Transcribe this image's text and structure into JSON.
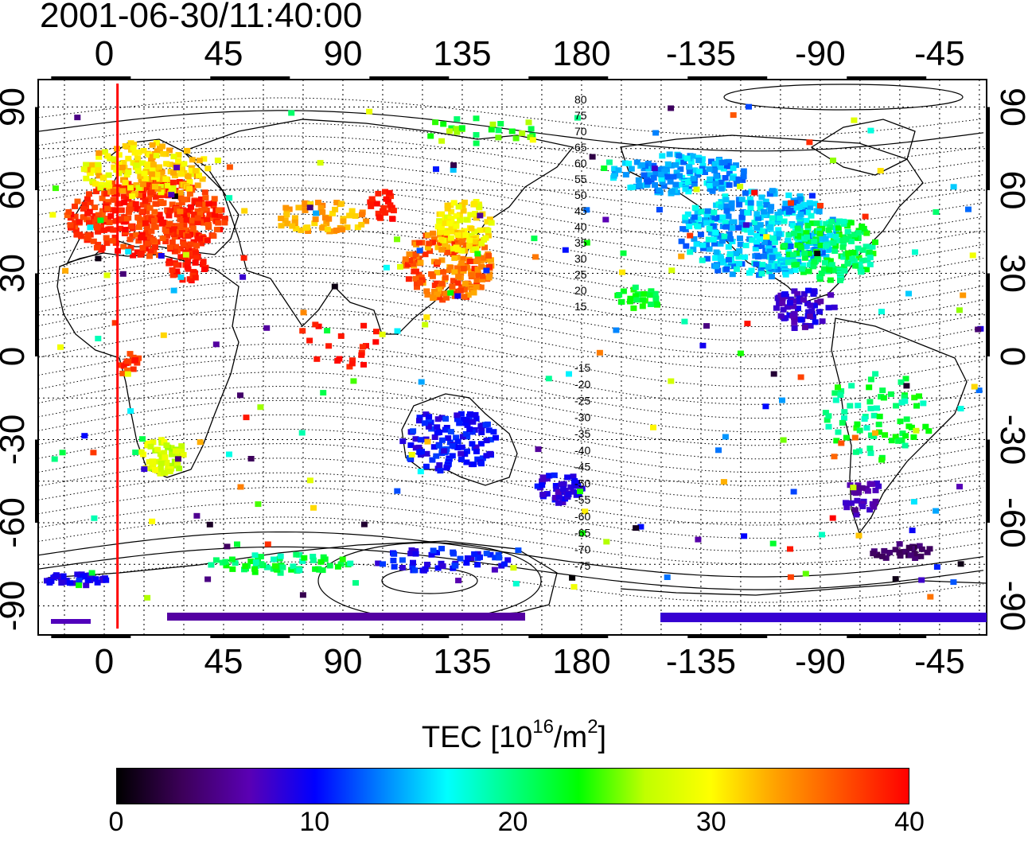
{
  "title": "2001-06-30/11:40:00",
  "map": {
    "top_lon_labels": [
      "0",
      "45",
      "90",
      "135",
      "180",
      "-135",
      "-90",
      "-45"
    ],
    "bottom_lon_labels": [
      "0",
      "45",
      "90",
      "135",
      "180",
      "-135",
      "-90",
      "-45"
    ],
    "left_lat_labels": [
      "90",
      "60",
      "30",
      "0",
      "-30",
      "-60",
      "-90"
    ],
    "right_lat_labels": [
      "90",
      "60",
      "30",
      "0",
      "-30",
      "-60",
      "-90"
    ],
    "lon_ticks": [
      0,
      45,
      90,
      135,
      180,
      -135,
      -90,
      -45
    ],
    "lat_ticks": [
      90,
      60,
      30,
      0,
      -30,
      -60,
      -90
    ],
    "contour_labels": [
      "80",
      "75",
      "70",
      "65",
      "60",
      "55",
      "50",
      "45",
      "40",
      "35",
      "30",
      "25",
      "20",
      "15",
      "-15",
      "-20",
      "-25",
      "-30",
      "-35",
      "-40",
      "-45",
      "-50",
      "-55",
      "-60",
      "-65",
      "-70",
      "-75"
    ],
    "meridian_line_lon": 5,
    "meridian_line_color": "#ff0000",
    "grid": "dotted"
  },
  "colorbar": {
    "title": "TEC  [10",
    "title_sup": "16",
    "title_mid": "/m",
    "title_sup2": "2",
    "title_end": "]",
    "tick_labels": [
      "0",
      "10",
      "20",
      "30",
      "40"
    ],
    "range": [
      0,
      40
    ],
    "colors": [
      "#000000",
      "#3d005a",
      "#5a00b4",
      "#0000ff",
      "#0080ff",
      "#00ffff",
      "#00ff80",
      "#00ff00",
      "#c0ff00",
      "#ffff00",
      "#ffa000",
      "#ff5000",
      "#ff0000"
    ]
  }
}
